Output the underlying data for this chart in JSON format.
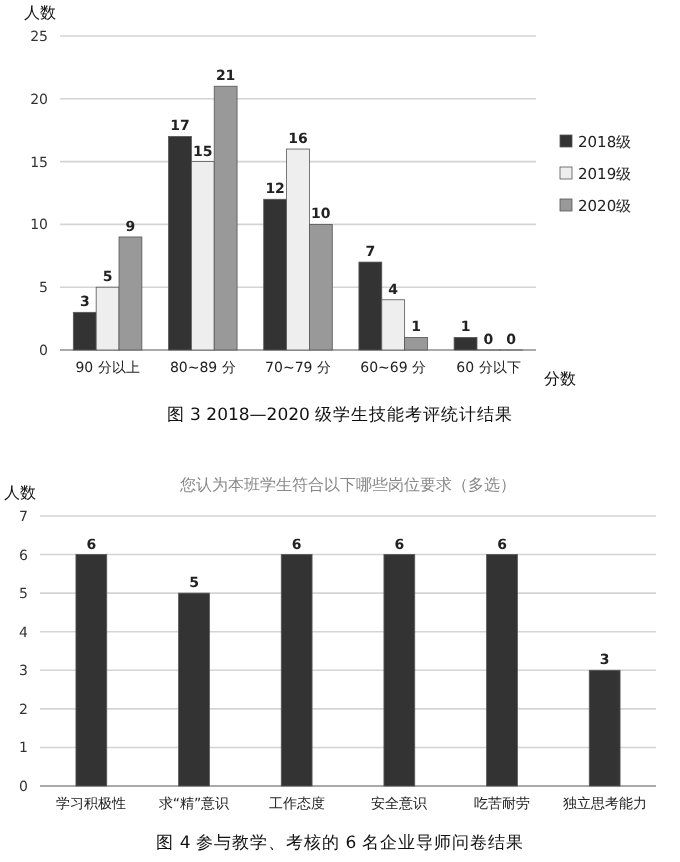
{
  "chart_data": [
    {
      "type": "bar",
      "categories": [
        "90 分以上",
        "80~89 分",
        "70~79 分",
        "60~69 分",
        "60 分以下"
      ],
      "series": [
        {
          "name": "2018级",
          "color": "#333333",
          "values": [
            3,
            17,
            12,
            7,
            1
          ]
        },
        {
          "name": "2019级",
          "color": "#eeeeee",
          "values": [
            5,
            15,
            16,
            4,
            0
          ]
        },
        {
          "name": "2020级",
          "color": "#999999",
          "values": [
            9,
            21,
            10,
            1,
            0
          ]
        }
      ],
      "ylabel": "人数",
      "xlabel": "分数",
      "ylim": [
        0,
        25
      ],
      "yticks": [
        0,
        5,
        10,
        15,
        20,
        25
      ],
      "grid": "y",
      "legend": "right",
      "data_labels": true,
      "annotations": [
        "图 3  2018—2020 级学生技能考评统计结果"
      ]
    },
    {
      "type": "bar",
      "title": "您认为本班学生符合以下哪些岗位要求（多选）",
      "categories": [
        "学习积极性",
        "求“精”意识",
        "工作态度",
        "安全意识",
        "吃苦耐劳",
        "独立思考能力"
      ],
      "values": [
        6,
        5,
        6,
        6,
        6,
        3
      ],
      "color": "#333333",
      "ylabel": "人数",
      "ylim": [
        0,
        7
      ],
      "yticks": [
        0,
        1,
        2,
        3,
        4,
        5,
        6,
        7
      ],
      "grid": "y",
      "data_labels": true,
      "annotations": [
        "图 4  参与教学、考核的 6 名企业导师问卷结果"
      ]
    }
  ]
}
